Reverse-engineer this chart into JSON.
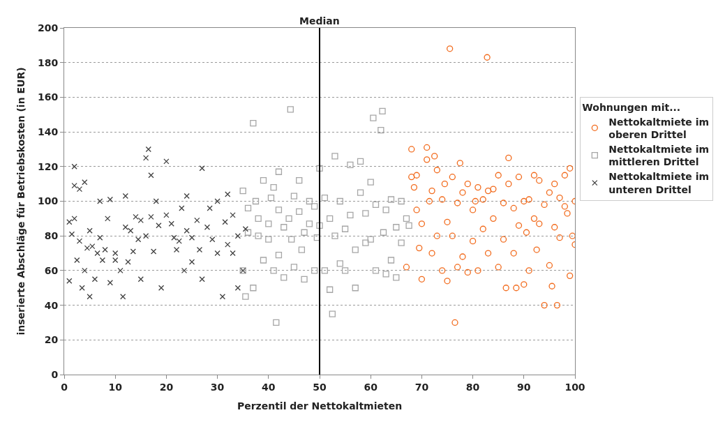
{
  "chart_data": {
    "type": "scatter",
    "xlabel": "Perzentil der Nettokaltmieten",
    "ylabel": "inserierte Abschläge für Betriebskosten (in EUR)",
    "legend_title": "Wohnungen mit...",
    "xlim": [
      0,
      100
    ],
    "xticks": [
      0,
      10,
      20,
      30,
      40,
      50,
      60,
      70,
      80,
      90,
      100
    ],
    "ylim": [
      0,
      200
    ],
    "yticks": [
      0,
      20,
      40,
      60,
      80,
      100,
      120,
      140,
      160,
      180,
      200
    ],
    "grid": "y",
    "legend": "right",
    "ref_lines": [
      {
        "axis": "x",
        "value": 50,
        "label": "Median",
        "color": "#000000"
      }
    ],
    "series": [
      {
        "name": "Nettokaltmiete im oberen Drittel",
        "color": "#f26b1d",
        "marker": "circle",
        "x": [
          67,
          68,
          68,
          68.5,
          69,
          69,
          69.5,
          70,
          70,
          71,
          71,
          71.5,
          72,
          72,
          72.5,
          73,
          73,
          74,
          74,
          74.5,
          75,
          75,
          75.5,
          76,
          76,
          76.5,
          77,
          77,
          77.5,
          78,
          78,
          79,
          79,
          80,
          80,
          80.5,
          81,
          81,
          82,
          82,
          82.8,
          83,
          83,
          84,
          84,
          85,
          85,
          86,
          86,
          86.5,
          87,
          87,
          88,
          88,
          88.5,
          89,
          89,
          90,
          90,
          90.5,
          91,
          91,
          92,
          92,
          92.5,
          93,
          93,
          94,
          94,
          95,
          95,
          95.5,
          96,
          96,
          96.5,
          97,
          97,
          98,
          98,
          98.5,
          99,
          99,
          99.5,
          100,
          100
        ],
        "values": [
          62,
          130,
          114,
          108,
          115,
          95,
          73,
          87,
          55,
          131,
          124,
          100,
          106,
          70,
          126,
          118,
          80,
          101,
          60,
          110,
          88,
          54,
          188,
          114,
          80,
          30,
          99,
          62,
          122,
          105,
          68,
          110,
          59,
          95,
          77,
          100,
          108,
          60,
          84,
          101,
          183,
          106,
          70,
          107,
          90,
          115,
          62,
          99,
          78,
          50,
          125,
          110,
          96,
          70,
          50,
          114,
          86,
          100,
          52,
          82,
          101,
          60,
          115,
          90,
          72,
          112,
          87,
          98,
          40,
          105,
          63,
          51,
          110,
          85,
          40,
          102,
          79,
          115,
          97,
          93,
          119,
          57,
          80,
          100,
          75
        ]
      },
      {
        "name": "Nettokaltmiete im mittleren Drittel",
        "color": "#a6a6a6",
        "marker": "square",
        "x": [
          35,
          35,
          35.5,
          36,
          36,
          37,
          37,
          37.5,
          38,
          38,
          39,
          39,
          40,
          40,
          40.5,
          41,
          41,
          41.5,
          42,
          42,
          42,
          43,
          43,
          44,
          44.3,
          44.5,
          45,
          45,
          46,
          46,
          46.5,
          47,
          47,
          48,
          48,
          49,
          49,
          49.5,
          50,
          50,
          51,
          51,
          52,
          52,
          52.5,
          53,
          53,
          54,
          54,
          55,
          55,
          56,
          56,
          57,
          57,
          58,
          58,
          59,
          59,
          60,
          60,
          60.5,
          61,
          61,
          62,
          62.3,
          62.5,
          63,
          63,
          64,
          64,
          65,
          65,
          66,
          66,
          67,
          67.5
        ],
        "values": [
          106,
          60,
          45,
          96,
          82,
          145,
          50,
          100,
          90,
          80,
          112,
          66,
          87,
          78,
          102,
          108,
          60,
          30,
          117,
          95,
          69,
          85,
          56,
          90,
          153,
          78,
          103,
          62,
          112,
          94,
          72,
          82,
          55,
          100,
          87,
          97,
          60,
          79,
          119,
          86,
          102,
          60,
          90,
          49,
          35,
          126,
          80,
          100,
          64,
          84,
          60,
          121,
          92,
          72,
          50,
          123,
          105,
          93,
          76,
          111,
          78,
          148,
          98,
          60,
          141,
          152,
          82,
          95,
          58,
          101,
          66,
          85,
          56,
          100,
          76,
          90,
          86
        ]
      },
      {
        "name": "Nettokaltmiete im unteren Drittel",
        "color": "#404040",
        "marker": "cross",
        "x": [
          1,
          1,
          1.5,
          2,
          2,
          2,
          2.5,
          3,
          3,
          3.5,
          4,
          4,
          4.5,
          5,
          5,
          5.5,
          6,
          6.5,
          7,
          7,
          7.5,
          8,
          8.5,
          9,
          9,
          10,
          10,
          11,
          11.5,
          12,
          12,
          12.5,
          13,
          13.5,
          14,
          14.5,
          15,
          15,
          16,
          16.5,
          16,
          17,
          17,
          17.5,
          18,
          18.5,
          19,
          20,
          20,
          21,
          21.5,
          22,
          22.5,
          23,
          23.5,
          24,
          24,
          25,
          25,
          26,
          26.5,
          27,
          27,
          28,
          28.5,
          29,
          30,
          30,
          31,
          31.5,
          32,
          32,
          33,
          33,
          34,
          34,
          35,
          35.5
        ],
        "values": [
          88,
          54,
          81,
          109,
          90,
          120,
          66,
          107,
          77,
          50,
          111,
          60,
          73,
          83,
          45,
          74,
          55,
          70,
          100,
          79,
          66,
          72,
          90,
          101,
          53,
          70,
          66,
          60,
          45,
          103,
          85,
          65,
          83,
          71,
          91,
          78,
          89,
          55,
          125,
          130,
          80,
          115,
          91,
          71,
          100,
          86,
          50,
          123,
          92,
          87,
          79,
          72,
          77,
          96,
          60,
          103,
          83,
          65,
          79,
          89,
          72,
          119,
          55,
          85,
          96,
          78,
          100,
          70,
          45,
          88,
          104,
          75,
          92,
          70,
          50,
          80,
          60,
          84
        ]
      }
    ]
  }
}
